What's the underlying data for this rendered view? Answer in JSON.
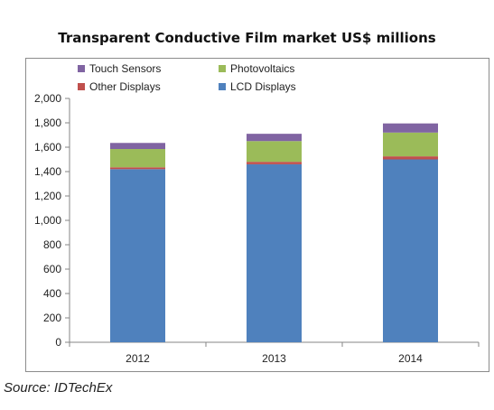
{
  "title": "Transparent Conductive Film market US$ millions",
  "source": "Source: IDTechEx",
  "chart_data": {
    "type": "bar",
    "stacked": true,
    "categories": [
      "2012",
      "2013",
      "2014"
    ],
    "series": [
      {
        "name": "LCD Displays",
        "color": "#4f81bd",
        "values": [
          1420,
          1460,
          1500
        ]
      },
      {
        "name": "Other Displays",
        "color": "#c0504d",
        "values": [
          15,
          20,
          25
        ]
      },
      {
        "name": "Photovoltaics",
        "color": "#9bbb59",
        "values": [
          150,
          170,
          195
        ]
      },
      {
        "name": "Touch Sensors",
        "color": "#8064a2",
        "values": [
          50,
          60,
          75
        ]
      }
    ],
    "legend_order": [
      "Touch Sensors",
      "Photovoltaics",
      "Other Displays",
      "LCD Displays"
    ],
    "legend_placement": "top-left",
    "ylim": [
      0,
      2000
    ],
    "yticks": [
      "0",
      "200",
      "400",
      "600",
      "800",
      "1,000",
      "1,200",
      "1,400",
      "1,600",
      "1,800",
      "2,000"
    ],
    "grid": false
  }
}
